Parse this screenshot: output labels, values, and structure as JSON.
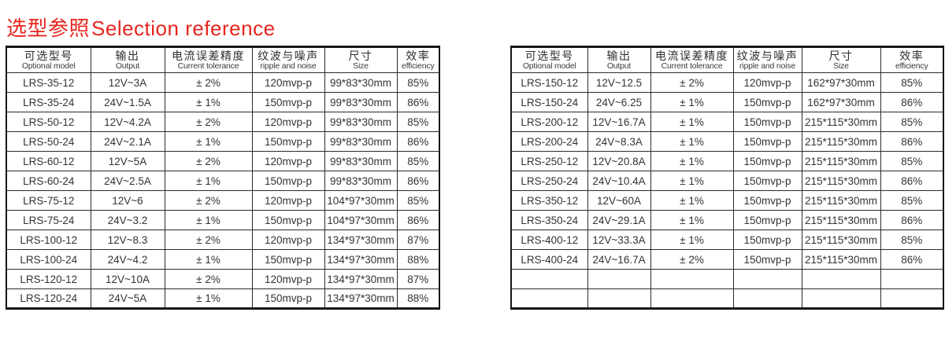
{
  "title": {
    "cn": "选型参照",
    "en": "Selection reference"
  },
  "colors": {
    "title_red": "#e8251d"
  },
  "table_header": {
    "columns": [
      {
        "key": "optional-model",
        "cn": "可选型号",
        "en": "Optional model"
      },
      {
        "key": "output",
        "cn": "输出",
        "en": "Output"
      },
      {
        "key": "current-tolerance",
        "cn": "电流误差精度",
        "en": "Current tolerance"
      },
      {
        "key": "ripple-noise",
        "cn": "纹波与噪声",
        "en": "ripple and noise"
      },
      {
        "key": "size",
        "cn": "尺寸",
        "en": "Size"
      },
      {
        "key": "efficiency",
        "cn": "效率",
        "en": "efficiency"
      }
    ]
  },
  "left_table": {
    "rows": [
      [
        "LRS-35-12",
        "12V~3A",
        "± 2%",
        "120mvp-p",
        "99*83*30mm",
        "85%"
      ],
      [
        "LRS-35-24",
        "24V~1.5A",
        "± 1%",
        "150mvp-p",
        "99*83*30mm",
        "86%"
      ],
      [
        "LRS-50-12",
        "12V~4.2A",
        "± 2%",
        "120mvp-p",
        "99*83*30mm",
        "85%"
      ],
      [
        "LRS-50-24",
        "24V~2.1A",
        "± 1%",
        "150mvp-p",
        "99*83*30mm",
        "86%"
      ],
      [
        "LRS-60-12",
        "12V~5A",
        "± 2%",
        "120mvp-p",
        "99*83*30mm",
        "85%"
      ],
      [
        "LRS-60-24",
        "24V~2.5A",
        "± 1%",
        "150mvp-p",
        "99*83*30mm",
        "86%"
      ],
      [
        "LRS-75-12",
        "12V~6",
        "± 2%",
        "120mvp-p",
        "104*97*30mm",
        "85%"
      ],
      [
        "LRS-75-24",
        "24V~3.2",
        "± 1%",
        "150mvp-p",
        "104*97*30mm",
        "86%"
      ],
      [
        "LRS-100-12",
        "12V~8.3",
        "± 2%",
        "120mvp-p",
        "134*97*30mm",
        "87%"
      ],
      [
        "LRS-100-24",
        "24V~4.2",
        "± 1%",
        "150mvp-p",
        "134*97*30mm",
        "88%"
      ],
      [
        "LRS-120-12",
        "12V~10A",
        "± 2%",
        "120mvp-p",
        "134*97*30mm",
        "87%"
      ],
      [
        "LRS-120-24",
        "24V~5A",
        "± 1%",
        "150mvp-p",
        "134*97*30mm",
        "88%"
      ]
    ]
  },
  "right_table": {
    "rows": [
      [
        "LRS-150-12",
        "12V~12.5",
        "± 2%",
        "120mvp-p",
        "162*97*30mm",
        "85%"
      ],
      [
        "LRS-150-24",
        "24V~6.25",
        "± 1%",
        "150mvp-p",
        "162*97*30mm",
        "86%"
      ],
      [
        "LRS-200-12",
        "12V~16.7A",
        "± 1%",
        "150mvp-p",
        "215*115*30mm",
        "85%"
      ],
      [
        "LRS-200-24",
        "24V~8.3A",
        "± 1%",
        "150mvp-p",
        "215*115*30mm",
        "86%"
      ],
      [
        "LRS-250-12",
        "12V~20.8A",
        "± 1%",
        "150mvp-p",
        "215*115*30mm",
        "85%"
      ],
      [
        "LRS-250-24",
        "24V~10.4A",
        "± 1%",
        "150mvp-p",
        "215*115*30mm",
        "86%"
      ],
      [
        "LRS-350-12",
        "12V~60A",
        "± 1%",
        "150mvp-p",
        "215*115*30mm",
        "85%"
      ],
      [
        "LRS-350-24",
        "24V~29.1A",
        "± 1%",
        "150mvp-p",
        "215*115*30mm",
        "86%"
      ],
      [
        "LRS-400-12",
        "12V~33.3A",
        "± 1%",
        "150mvp-p",
        "215*115*30mm",
        "85%"
      ],
      [
        "LRS-400-24",
        "24V~16.7A",
        "± 2%",
        "150mvp-p",
        "215*115*30mm",
        "86%"
      ],
      [
        "",
        "",
        "",
        "",
        "",
        ""
      ],
      [
        "",
        "",
        "",
        "",
        "",
        ""
      ]
    ]
  }
}
